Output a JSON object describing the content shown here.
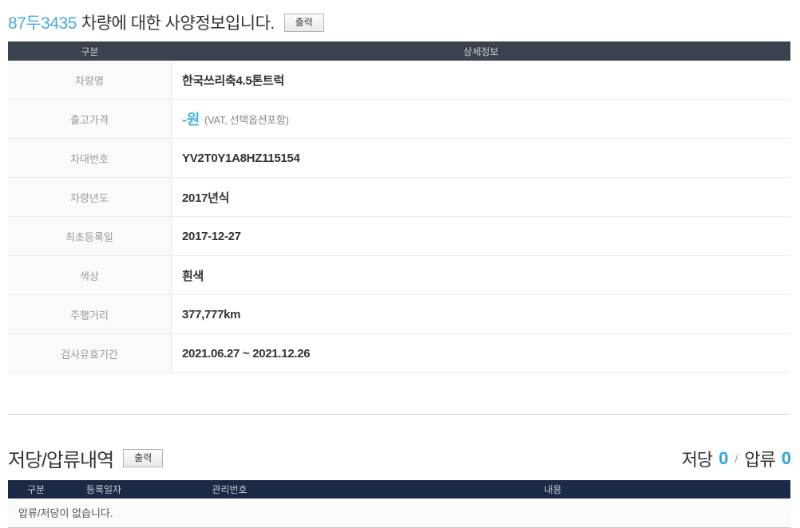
{
  "page": {
    "title": {
      "plate": "87두3435",
      "rest": "차량에 대한 사양정보입니다.",
      "print_label": "출력"
    }
  },
  "spec_table": {
    "col_headers": {
      "category": "구분",
      "detail": "상세정보"
    },
    "rows": [
      {
        "label": "차량명",
        "value": "한국쓰리축4.5톤트럭"
      },
      {
        "label": "출고가격",
        "value": "-원",
        "note": "(VAT, 선택옵션포함)"
      },
      {
        "label": "차대번호",
        "value": "YV2T0Y1A8HZ115154"
      },
      {
        "label": "차량년도",
        "value": "2017년식"
      },
      {
        "label": "최초등록일",
        "value": "2017-12-27"
      },
      {
        "label": "색상",
        "value": "흰색"
      },
      {
        "label": "주행거리",
        "value": "377,777km"
      },
      {
        "label": "검사유효기간",
        "value": "2021.06.27 ~ 2021.12.26"
      }
    ]
  },
  "lien_section": {
    "heading": "저당/압류내역",
    "print_label": "출력",
    "summary": {
      "mortgage_label": "저당",
      "mortgage_count": "0",
      "separator": "/",
      "seizure_label": "압류",
      "seizure_count": "0"
    },
    "table": {
      "col_headers": [
        "구분",
        "등록일자",
        "관리번호",
        "내용"
      ],
      "empty_message": "압류/저당이 없습니다."
    }
  },
  "colors": {
    "accent_blue": "#48a9df",
    "price_blue": "#49b5d6",
    "count_blue": "#2ea6e0",
    "spec_header_bg": "#3a414f",
    "lien_header_bg": "#1b2944"
  }
}
